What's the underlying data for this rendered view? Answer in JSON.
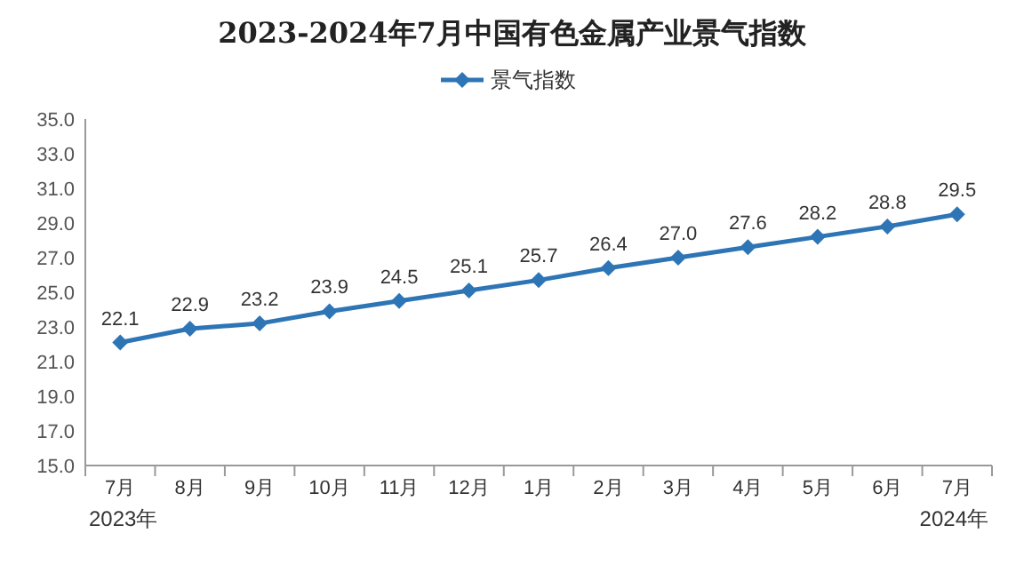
{
  "chart_data": {
    "type": "line",
    "title": "2023-2024年7月中国有色金属产业景气指数",
    "categories": [
      "7月",
      "8月",
      "9月",
      "10月",
      "11月",
      "12月",
      "1月",
      "2月",
      "3月",
      "4月",
      "5月",
      "6月",
      "7月"
    ],
    "series": [
      {
        "name": "景气指数",
        "color": "#2e75b6",
        "values": [
          22.1,
          22.9,
          23.2,
          23.9,
          24.5,
          25.1,
          25.7,
          26.4,
          27.0,
          27.6,
          28.2,
          28.8,
          29.5
        ],
        "value_labels": [
          "22.1",
          "22.9",
          "23.2",
          "23.9",
          "24.5",
          "25.1",
          "25.7",
          "26.4",
          "27.0",
          "27.6",
          "28.2",
          "28.8",
          "29.5"
        ]
      }
    ],
    "ylim": [
      15,
      35
    ],
    "yticks": [
      {
        "value": 15,
        "label": "15.0"
      },
      {
        "value": 17,
        "label": "17.0"
      },
      {
        "value": 19,
        "label": "19.0"
      },
      {
        "value": 21,
        "label": "21.0"
      },
      {
        "value": 23,
        "label": "23.0"
      },
      {
        "value": 25,
        "label": "25.0"
      },
      {
        "value": 27,
        "label": "27.0"
      },
      {
        "value": 29,
        "label": "29.0"
      },
      {
        "value": 31,
        "label": "31.0"
      },
      {
        "value": 33,
        "label": "33.0"
      },
      {
        "value": 35,
        "label": "35.0"
      }
    ],
    "legend": "top",
    "marker": "diamond",
    "line_style": "solid",
    "annotations": [
      "2023年",
      "2024年"
    ]
  }
}
